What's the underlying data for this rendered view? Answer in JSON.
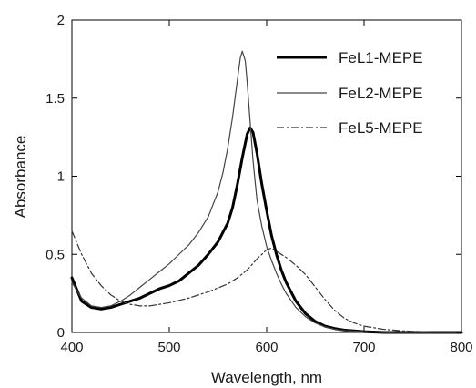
{
  "chart_data": {
    "type": "line",
    "title": "",
    "xlabel": "Wavelength, nm",
    "ylabel": "Absorbance",
    "xlim": [
      400,
      800
    ],
    "ylim": [
      0,
      2
    ],
    "xticks": [
      400,
      500,
      600,
      700,
      800
    ],
    "yticks": [
      0,
      0.5,
      1,
      1.5,
      2
    ],
    "xtick_labels": [
      "400",
      "500",
      "600",
      "700",
      "800"
    ],
    "ytick_labels": [
      "0",
      "0.5",
      "1",
      "1.5",
      "2"
    ],
    "grid": false,
    "legend_position": "top-right",
    "series": [
      {
        "name": "FeL1-MEPE",
        "style": "solid-thick",
        "color": "#000000",
        "x": [
          400,
          410,
          420,
          430,
          440,
          450,
          460,
          470,
          480,
          490,
          500,
          510,
          520,
          530,
          540,
          550,
          560,
          565,
          570,
          575,
          580,
          583,
          586,
          590,
          595,
          600,
          605,
          610,
          615,
          620,
          630,
          640,
          650,
          660,
          670,
          680,
          690,
          700,
          720,
          750,
          800
        ],
        "y": [
          0.35,
          0.2,
          0.16,
          0.15,
          0.16,
          0.18,
          0.2,
          0.22,
          0.25,
          0.28,
          0.3,
          0.33,
          0.38,
          0.43,
          0.5,
          0.58,
          0.7,
          0.8,
          0.95,
          1.12,
          1.27,
          1.31,
          1.28,
          1.15,
          0.95,
          0.78,
          0.62,
          0.5,
          0.4,
          0.32,
          0.2,
          0.12,
          0.07,
          0.04,
          0.025,
          0.015,
          0.01,
          0.005,
          0,
          0,
          0
        ]
      },
      {
        "name": "FeL2-MEPE",
        "style": "solid-thin",
        "color": "#444444",
        "x": [
          400,
          410,
          420,
          430,
          440,
          450,
          460,
          470,
          480,
          490,
          500,
          510,
          520,
          530,
          540,
          550,
          555,
          560,
          565,
          570,
          573,
          575,
          578,
          580,
          583,
          586,
          590,
          595,
          600,
          605,
          610,
          615,
          620,
          630,
          640,
          650,
          660,
          670,
          680,
          690,
          700,
          720,
          750,
          800
        ],
        "y": [
          0.32,
          0.22,
          0.17,
          0.16,
          0.17,
          0.2,
          0.24,
          0.29,
          0.34,
          0.39,
          0.44,
          0.5,
          0.56,
          0.64,
          0.74,
          0.9,
          1.02,
          1.18,
          1.38,
          1.62,
          1.76,
          1.8,
          1.74,
          1.6,
          1.35,
          1.1,
          0.85,
          0.68,
          0.55,
          0.46,
          0.38,
          0.31,
          0.25,
          0.16,
          0.1,
          0.06,
          0.035,
          0.02,
          0.012,
          0.008,
          0.005,
          0,
          0,
          0
        ]
      },
      {
        "name": "FeL5-MEPE",
        "style": "dash-dot",
        "color": "#333333",
        "x": [
          400,
          410,
          420,
          430,
          440,
          450,
          460,
          470,
          480,
          490,
          500,
          520,
          540,
          560,
          570,
          580,
          590,
          600,
          605,
          610,
          620,
          630,
          640,
          650,
          660,
          670,
          680,
          690,
          700,
          720,
          740,
          760,
          780,
          800
        ],
        "y": [
          0.65,
          0.5,
          0.38,
          0.3,
          0.24,
          0.2,
          0.18,
          0.17,
          0.17,
          0.18,
          0.19,
          0.22,
          0.26,
          0.31,
          0.35,
          0.4,
          0.47,
          0.53,
          0.54,
          0.52,
          0.48,
          0.43,
          0.37,
          0.29,
          0.21,
          0.14,
          0.09,
          0.06,
          0.04,
          0.02,
          0.01,
          0.005,
          0,
          0
        ]
      }
    ]
  }
}
